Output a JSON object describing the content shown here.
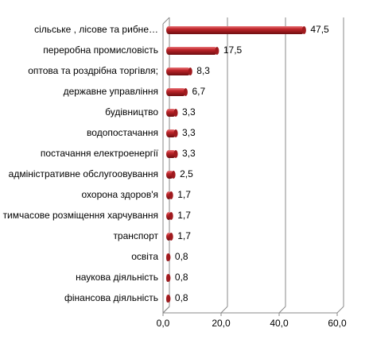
{
  "chart_data": {
    "type": "bar",
    "orientation": "horizontal",
    "categories": [
      "сільське , лісове та рибне…",
      "переробна промисловість",
      "оптова та роздрібна торгівля;",
      "державне управління",
      "будівництво",
      "водопостачання",
      "постачання електроенергії",
      "адміністративне обслугоовування",
      "охорона здоров'я",
      "тимчасове розміщення харчування",
      "транспорт",
      "освіта",
      "наукова  діяльність",
      "фінансова діяльність"
    ],
    "values": [
      47.5,
      17.5,
      8.3,
      6.7,
      3.3,
      3.3,
      3.3,
      2.5,
      1.7,
      1.7,
      1.7,
      0.8,
      0.8,
      0.8
    ],
    "value_labels": [
      "47,5",
      "17,5",
      "8,3",
      "6,7",
      "3,3",
      "3,3",
      "3,3",
      "2,5",
      "1,7",
      "1,7",
      "1,7",
      "0,8",
      "0,8",
      "0,8"
    ],
    "color": "#c0262b",
    "xlim": [
      0,
      60
    ],
    "xticks": [
      {
        "value": 0,
        "label": "0,0"
      },
      {
        "value": 20,
        "label": "20,0"
      },
      {
        "value": 40,
        "label": "40,0"
      },
      {
        "value": 60,
        "label": "60,0"
      }
    ],
    "grid": true
  }
}
